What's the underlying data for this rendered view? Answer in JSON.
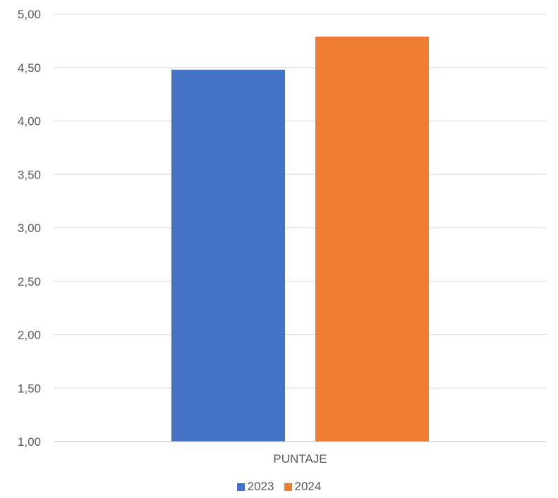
{
  "chart_data": {
    "type": "bar",
    "categories": [
      "PUNTAJE"
    ],
    "series": [
      {
        "name": "2023",
        "values": [
          4.48
        ],
        "color": "#4472C4"
      },
      {
        "name": "2024",
        "values": [
          4.79
        ],
        "color": "#ED7D31"
      }
    ],
    "ylim": [
      1.0,
      5.0
    ],
    "yticks": [
      "1,00",
      "1,50",
      "2,00",
      "2,50",
      "3,00",
      "3,50",
      "4,00",
      "4,50",
      "5,00"
    ],
    "grid": true,
    "legend_position": "bottom",
    "gridline_color": "#D9D9D9",
    "axis_color": "#BFBFBF"
  }
}
